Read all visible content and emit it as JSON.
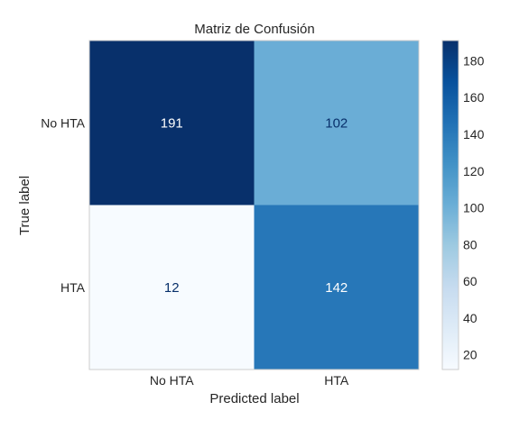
{
  "chart_data": {
    "type": "heatmap",
    "title": "Matriz de Confusión",
    "xlabel": "Predicted label",
    "ylabel": "True label",
    "x_categories": [
      "No HTA",
      "HTA"
    ],
    "y_categories": [
      "No HTA",
      "HTA"
    ],
    "values": [
      [
        191,
        102
      ],
      [
        12,
        142
      ]
    ],
    "colormap": "Blues",
    "colorbar": {
      "min": 12,
      "max": 191,
      "ticks": [
        20,
        40,
        60,
        80,
        100,
        120,
        140,
        160,
        180
      ]
    },
    "grid": false
  }
}
